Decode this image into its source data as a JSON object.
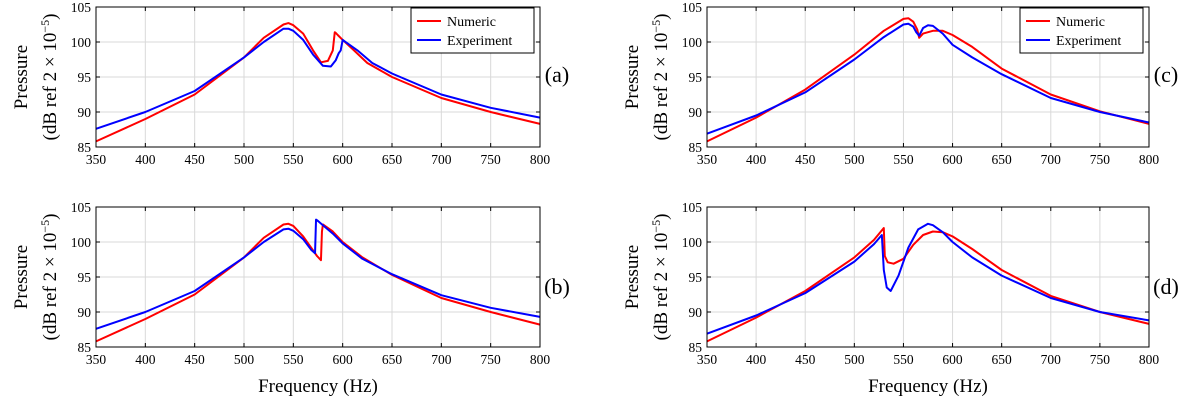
{
  "figure": {
    "xlabel": "Frequency (Hz)",
    "ylabel_line1": "Pressure",
    "ylabel_line2_prefix": "(dB ref 2 × 10",
    "ylabel_line2_exp": "−5",
    "ylabel_line2_suffix": ")"
  },
  "colors": {
    "numeric": "#ff0000",
    "experiment": "#0000ff",
    "grid": "#d9d9d9",
    "axis": "#000000"
  },
  "chart_data": [
    {
      "type": "line",
      "panel_label": "(a)",
      "xlim": [
        350,
        800
      ],
      "ylim": [
        85,
        105
      ],
      "xticks": [
        350,
        400,
        450,
        500,
        550,
        600,
        650,
        700,
        750,
        800
      ],
      "yticks": [
        85,
        90,
        95,
        100,
        105
      ],
      "grid": true,
      "legend": "top-right",
      "series": [
        {
          "name": "Numeric",
          "color": "#ff0000",
          "x": [
            350,
            400,
            450,
            500,
            520,
            540,
            545,
            550,
            560,
            570,
            578,
            585,
            590,
            592,
            593,
            595,
            600,
            610,
            625,
            650,
            700,
            750,
            800
          ],
          "y": [
            85.8,
            89.0,
            92.5,
            97.8,
            100.6,
            102.5,
            102.7,
            102.4,
            101.2,
            98.8,
            97.1,
            97.3,
            98.8,
            101.4,
            101.3,
            101.0,
            100.3,
            99.0,
            97.0,
            95.0,
            92.0,
            90.0,
            88.3
          ]
        },
        {
          "name": "Experiment",
          "color": "#0000ff",
          "x": [
            350,
            400,
            450,
            500,
            520,
            540,
            545,
            550,
            560,
            570,
            580,
            588,
            593,
            596,
            598,
            600,
            605,
            615,
            630,
            650,
            700,
            750,
            800
          ],
          "y": [
            87.6,
            90.0,
            93.0,
            97.8,
            100.0,
            101.9,
            101.9,
            101.6,
            100.3,
            98.2,
            96.6,
            96.5,
            97.4,
            98.4,
            98.8,
            100.3,
            99.8,
            98.8,
            97.0,
            95.5,
            92.5,
            90.6,
            89.2
          ]
        }
      ]
    },
    {
      "type": "line",
      "panel_label": "(b)",
      "xlim": [
        350,
        800
      ],
      "ylim": [
        85,
        105
      ],
      "xticks": [
        350,
        400,
        450,
        500,
        550,
        600,
        650,
        700,
        750,
        800
      ],
      "yticks": [
        85,
        90,
        95,
        100,
        105
      ],
      "grid": true,
      "legend": "none",
      "series": [
        {
          "name": "Numeric",
          "color": "#ff0000",
          "x": [
            350,
            400,
            450,
            500,
            520,
            540,
            545,
            550,
            560,
            568,
            574,
            578,
            579,
            580,
            585,
            590,
            600,
            620,
            650,
            700,
            750,
            800
          ],
          "y": [
            85.8,
            89.0,
            92.5,
            97.8,
            100.6,
            102.5,
            102.6,
            102.3,
            100.8,
            99.2,
            98.0,
            97.4,
            101.5,
            102.5,
            102.0,
            101.5,
            100.0,
            97.8,
            95.3,
            92.0,
            90.0,
            88.2
          ]
        },
        {
          "name": "Experiment",
          "color": "#0000ff",
          "x": [
            350,
            400,
            450,
            500,
            520,
            540,
            545,
            550,
            560,
            568,
            572,
            573,
            575,
            580,
            590,
            600,
            620,
            650,
            700,
            750,
            800
          ],
          "y": [
            87.6,
            90.0,
            93.0,
            97.8,
            100.0,
            101.8,
            101.9,
            101.6,
            100.4,
            98.9,
            98.4,
            103.2,
            103.0,
            102.4,
            101.2,
            99.8,
            97.6,
            95.4,
            92.4,
            90.6,
            89.3
          ]
        }
      ]
    },
    {
      "type": "line",
      "panel_label": "(c)",
      "xlim": [
        350,
        800
      ],
      "ylim": [
        85,
        105
      ],
      "xticks": [
        350,
        400,
        450,
        500,
        550,
        600,
        650,
        700,
        750,
        800
      ],
      "yticks": [
        85,
        90,
        95,
        100,
        105
      ],
      "grid": true,
      "legend": "top-right",
      "series": [
        {
          "name": "Numeric",
          "color": "#ff0000",
          "x": [
            350,
            400,
            450,
            500,
            530,
            550,
            555,
            560,
            564,
            566,
            570,
            580,
            590,
            600,
            620,
            650,
            700,
            750,
            800
          ],
          "y": [
            85.8,
            89.2,
            93.2,
            98.2,
            101.6,
            103.3,
            103.4,
            102.9,
            101.8,
            100.6,
            101.2,
            101.6,
            101.6,
            101.0,
            99.3,
            96.2,
            92.5,
            90.1,
            88.3
          ]
        },
        {
          "name": "Experiment",
          "color": "#0000ff",
          "x": [
            350,
            400,
            450,
            500,
            530,
            550,
            555,
            560,
            563,
            566,
            570,
            575,
            580,
            590,
            600,
            620,
            650,
            700,
            750,
            800
          ],
          "y": [
            86.9,
            89.5,
            92.8,
            97.5,
            100.7,
            102.5,
            102.6,
            102.2,
            101.4,
            100.9,
            102.0,
            102.4,
            102.3,
            101.2,
            99.6,
            97.8,
            95.4,
            92.0,
            90.0,
            88.5
          ]
        }
      ]
    },
    {
      "type": "line",
      "panel_label": "(d)",
      "xlim": [
        350,
        800
      ],
      "ylim": [
        85,
        105
      ],
      "xticks": [
        350,
        400,
        450,
        500,
        550,
        600,
        650,
        700,
        750,
        800
      ],
      "yticks": [
        85,
        90,
        95,
        100,
        105
      ],
      "grid": true,
      "legend": "none",
      "series": [
        {
          "name": "Numeric",
          "color": "#ff0000",
          "x": [
            350,
            400,
            450,
            500,
            520,
            530,
            531,
            534,
            540,
            550,
            560,
            570,
            580,
            590,
            600,
            620,
            650,
            700,
            750,
            800
          ],
          "y": [
            85.8,
            89.2,
            93.0,
            97.8,
            100.3,
            102.0,
            98.0,
            97.1,
            96.9,
            97.6,
            99.6,
            101.0,
            101.5,
            101.4,
            100.8,
            99.0,
            96.0,
            92.3,
            90.0,
            88.3
          ]
        },
        {
          "name": "Experiment",
          "color": "#0000ff",
          "x": [
            350,
            400,
            450,
            500,
            520,
            528,
            530,
            533,
            537,
            545,
            555,
            565,
            575,
            580,
            590,
            600,
            620,
            650,
            700,
            750,
            800
          ],
          "y": [
            86.9,
            89.5,
            92.7,
            97.2,
            99.7,
            101.0,
            96.0,
            93.5,
            93.0,
            95.2,
            99.2,
            101.8,
            102.6,
            102.4,
            101.4,
            100.0,
            97.8,
            95.2,
            92.0,
            90.0,
            88.8
          ]
        }
      ]
    }
  ]
}
